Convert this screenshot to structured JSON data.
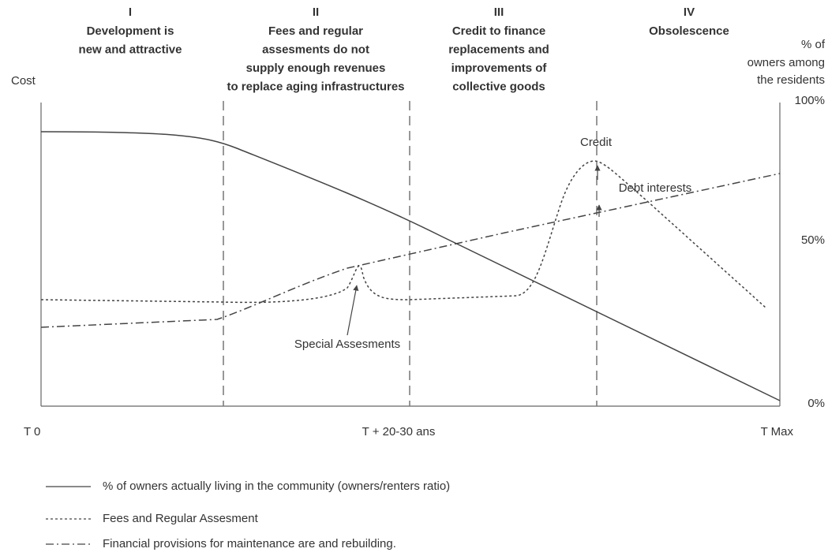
{
  "phases": [
    {
      "numeral": "I",
      "lines": [
        "Development is",
        "new and attractive"
      ]
    },
    {
      "numeral": "II",
      "lines": [
        "Fees and regular",
        "assesments do not",
        "supply enough revenues",
        "to replace aging infrastructures"
      ]
    },
    {
      "numeral": "III",
      "lines": [
        "Credit to finance",
        "replacements and",
        "improvements of",
        "collective goods"
      ]
    },
    {
      "numeral": "IV",
      "lines": [
        "Obsolescence"
      ]
    }
  ],
  "left_axis": {
    "title": "Cost"
  },
  "right_axis": {
    "title": [
      "% of",
      "owners among",
      "the residents"
    ],
    "ticks": [
      "100%",
      "50%",
      "0%"
    ]
  },
  "x_axis": {
    "labels": [
      "T 0",
      "T + 20-30 ans",
      "T Max"
    ]
  },
  "annotations": {
    "credit": "Credit",
    "debt": "Debt interests",
    "special": "Special Assesments"
  },
  "legend": [
    "% of owners actually living in the community (owners/renters ratio)",
    "Fees and Regular Assesment",
    "Financial provisions for maintenance are and rebuilding."
  ]
}
